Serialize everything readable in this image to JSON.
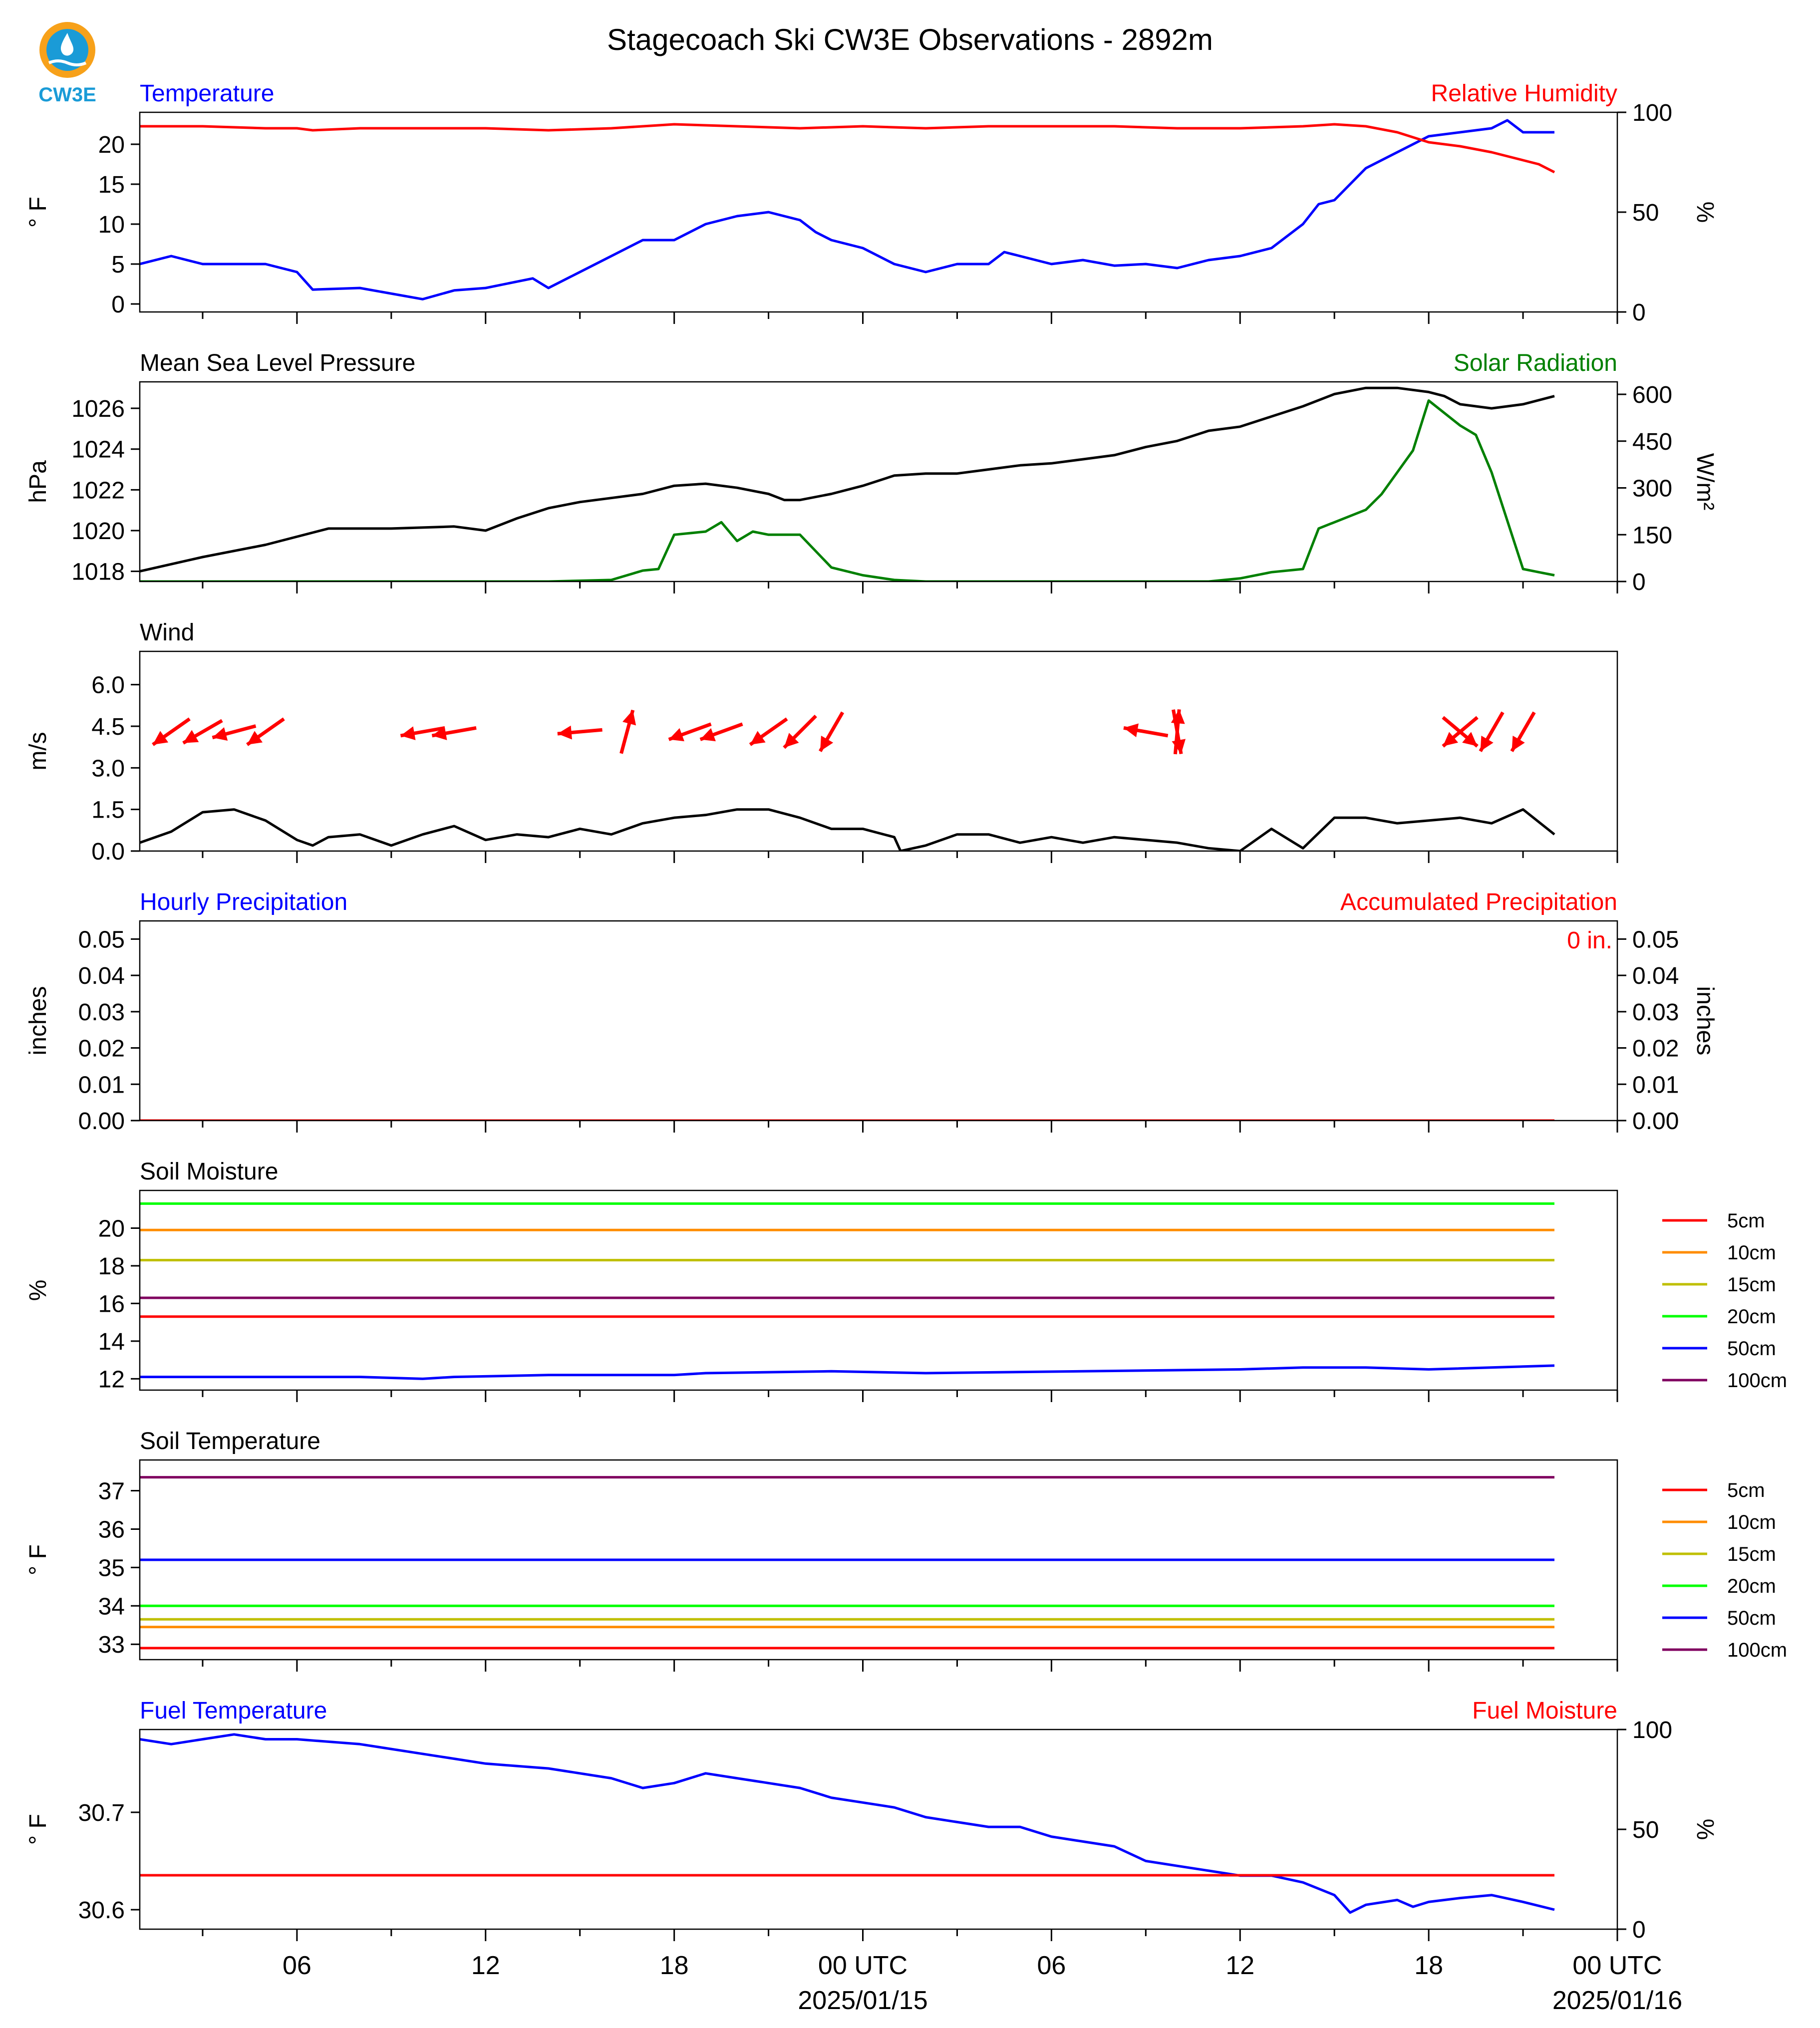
{
  "page_title": "Stagecoach Ski CW3E Observations - 2892m",
  "logo": {
    "text": "CW3E",
    "color": "#1a9bd7",
    "ring_color": "#f7a11a"
  },
  "colors": {
    "blue": "#0000ff",
    "red": "#ff0000",
    "green": "#008000",
    "black": "#000000",
    "orange": "#ff8c00",
    "olive": "#bfbf00",
    "lime": "#00ff00",
    "purple": "#800060"
  },
  "time_axis": {
    "tick_labels": [
      "06",
      "12",
      "18",
      "00 UTC",
      "06",
      "12",
      "18",
      "00 UTC"
    ],
    "tick_hours": [
      6,
      12,
      18,
      24,
      30,
      36,
      42,
      48
    ],
    "date_labels": [
      {
        "hour": 24,
        "text": "2025/01/15"
      },
      {
        "hour": 48,
        "text": "2025/01/16"
      }
    ],
    "range_hours": [
      1,
      48
    ],
    "data_end_hour": 46
  },
  "chart_data": [
    {
      "id": "temperature_rh",
      "type": "line",
      "title_left": "Temperature",
      "title_right": "Relative Humidity",
      "ylabel_left": "° F",
      "ylabel_right": "%",
      "ylim_left": [
        -1,
        24
      ],
      "yticks_left": [
        0,
        5,
        10,
        15,
        20
      ],
      "ylim_right": [
        0,
        100
      ],
      "yticks_right": [
        0,
        50,
        100
      ],
      "series": [
        {
          "axis": "left",
          "color": "#0000ff",
          "x": [
            1,
            2,
            3,
            5,
            6,
            6.5,
            8,
            10,
            11,
            12,
            13.5,
            14,
            15,
            16,
            17,
            18,
            19,
            20,
            21,
            22,
            22.5,
            23,
            24,
            25,
            26,
            27,
            28,
            28.5,
            29,
            30,
            31,
            32,
            33,
            34,
            35,
            36,
            37,
            38,
            38.5,
            39,
            40,
            41,
            42,
            43,
            44,
            44.5,
            45,
            46
          ],
          "y": [
            5,
            6,
            5,
            5,
            4,
            1.8,
            2,
            0.6,
            1.7,
            2,
            3.2,
            2,
            4,
            6,
            8,
            8,
            10,
            11,
            11.5,
            10.5,
            9,
            8,
            7,
            5,
            4,
            5,
            5,
            6.5,
            6,
            5,
            5.5,
            4.8,
            5,
            4.5,
            5.5,
            6,
            7,
            10,
            12.5,
            13,
            17,
            19,
            21,
            21.5,
            22,
            23,
            21.5,
            21.5
          ]
        },
        {
          "axis": "right",
          "color": "#ff0000",
          "x": [
            1,
            3,
            5,
            6,
            6.5,
            8,
            10,
            12,
            14,
            16,
            18,
            20,
            22,
            24,
            26,
            28,
            30,
            32,
            34,
            36,
            38,
            39,
            40,
            41,
            42,
            43,
            44,
            44.5,
            45,
            45.5,
            46
          ],
          "y": [
            93,
            93,
            92,
            92,
            91,
            92,
            92,
            92,
            91,
            92,
            94,
            93,
            92,
            93,
            92,
            93,
            93,
            93,
            92,
            92,
            93,
            94,
            93,
            90,
            85,
            83,
            80,
            78,
            76,
            74,
            70
          ]
        }
      ]
    },
    {
      "id": "pressure_solar",
      "type": "line",
      "title_left": "Mean Sea Level Pressure",
      "title_right": "Solar Radiation",
      "ylabel_left": "hPa",
      "ylabel_right": "W/m²",
      "ylim_left": [
        1017.5,
        1027.3
      ],
      "yticks_left": [
        1018,
        1020,
        1022,
        1024,
        1026
      ],
      "ylim_right": [
        0,
        640
      ],
      "yticks_right": [
        0,
        150,
        300,
        450,
        600
      ],
      "series": [
        {
          "axis": "left",
          "color": "#000000",
          "x": [
            1,
            3,
            5,
            7,
            9,
            11,
            12,
            13,
            14,
            15,
            16,
            17,
            18,
            19,
            20,
            21,
            21.5,
            22,
            23,
            24,
            25,
            26,
            27,
            28,
            29,
            30,
            31,
            32,
            33,
            34,
            35,
            36,
            37,
            38,
            39,
            40,
            41,
            42,
            42.5,
            43,
            44,
            45,
            46
          ],
          "y": [
            1018,
            1018.7,
            1019.3,
            1020.1,
            1020.1,
            1020.2,
            1020,
            1020.6,
            1021.1,
            1021.4,
            1021.6,
            1021.8,
            1022.2,
            1022.3,
            1022.1,
            1021.8,
            1021.5,
            1021.5,
            1021.8,
            1022.2,
            1022.7,
            1022.8,
            1022.8,
            1023,
            1023.2,
            1023.3,
            1023.5,
            1023.7,
            1024.1,
            1024.4,
            1024.9,
            1025.1,
            1025.6,
            1026.1,
            1026.7,
            1027,
            1027,
            1026.8,
            1026.6,
            1026.2,
            1026,
            1026.2,
            1026.6
          ]
        },
        {
          "axis": "right",
          "color": "#008000",
          "x": [
            1,
            14,
            16,
            17,
            17.5,
            18,
            19,
            19.5,
            20,
            20.5,
            21,
            22,
            23,
            24,
            25,
            26,
            30,
            35,
            36,
            37,
            38,
            38.5,
            40,
            40.5,
            41,
            41.5,
            42,
            43,
            43.5,
            44,
            45,
            45.5,
            46
          ],
          "y": [
            0,
            0,
            5,
            35,
            40,
            150,
            160,
            190,
            130,
            160,
            150,
            150,
            45,
            20,
            5,
            0,
            0,
            0,
            10,
            30,
            40,
            170,
            230,
            280,
            350,
            420,
            580,
            500,
            470,
            350,
            40,
            30,
            20
          ]
        }
      ]
    },
    {
      "id": "wind",
      "type": "line",
      "title_left": "Wind",
      "ylabel_left": "m/s",
      "ylim_left": [
        0,
        7.2
      ],
      "yticks_left": [
        0.0,
        1.5,
        3.0,
        4.5,
        6.0
      ],
      "series": [
        {
          "axis": "left",
          "color": "#000000",
          "x": [
            1,
            2,
            3,
            4,
            5,
            6,
            6.5,
            7,
            8,
            9,
            10,
            11,
            12,
            13,
            14,
            15,
            16,
            17,
            18,
            19,
            20,
            21,
            22,
            23,
            24,
            25,
            25.2,
            26,
            27,
            28,
            29,
            30,
            31,
            32,
            33,
            34,
            35,
            36,
            37,
            38,
            39,
            40,
            41,
            42,
            43,
            44,
            45,
            46
          ],
          "y": [
            0.3,
            0.7,
            1.4,
            1.5,
            1.1,
            0.4,
            0.2,
            0.5,
            0.6,
            0.2,
            0.6,
            0.9,
            0.4,
            0.6,
            0.5,
            0.8,
            0.6,
            1.0,
            1.2,
            1.3,
            1.5,
            1.5,
            1.2,
            0.8,
            0.8,
            0.5,
            0,
            0.2,
            0.6,
            0.6,
            0.3,
            0.5,
            0.3,
            0.5,
            0.4,
            0.3,
            0.1,
            0,
            0.8,
            0.1,
            1.2,
            1.2,
            1.0,
            1.1,
            1.2,
            1.0,
            1.5,
            0.6
          ]
        },
        {
          "axis": "left",
          "color": "#ff0000",
          "arrows": true,
          "x": [
            2,
            3,
            4,
            5,
            10,
            11,
            15,
            16.5,
            18.5,
            19.5,
            21,
            22,
            23,
            33,
            34,
            34,
            43,
            43,
            44,
            45
          ],
          "y": [
            4.3,
            4.3,
            4.3,
            4.3,
            4.3,
            4.3,
            4.3,
            4.3,
            4.3,
            4.3,
            4.3,
            4.3,
            4.3,
            4.3,
            4.3,
            4.3,
            4.3,
            4.3,
            4.3,
            4.3
          ],
          "dir_deg": [
            215,
            210,
            195,
            215,
            190,
            190,
            185,
            75,
            200,
            200,
            215,
            225,
            240,
            170,
            85,
            280,
            320,
            220,
            240,
            240
          ]
        }
      ]
    },
    {
      "id": "precipitation",
      "type": "line",
      "title_left": "Hourly Precipitation",
      "title_right": "Accumulated Precipitation",
      "annotation": "0 in.",
      "ylabel_left": "inches",
      "ylabel_right": "inches",
      "ylim_left": [
        0,
        0.055
      ],
      "yticks_left": [
        0.0,
        0.01,
        0.02,
        0.03,
        0.04,
        0.05
      ],
      "ylim_right": [
        0,
        0.055
      ],
      "yticks_right": [
        0.0,
        0.01,
        0.02,
        0.03,
        0.04,
        0.05
      ],
      "series": [
        {
          "axis": "left",
          "color": "#0000ff",
          "x": [
            1,
            46
          ],
          "y": [
            0,
            0
          ]
        },
        {
          "axis": "right",
          "color": "#ff0000",
          "x": [
            1,
            46
          ],
          "y": [
            0,
            0
          ]
        }
      ]
    },
    {
      "id": "soil_moisture",
      "type": "line",
      "title_left": "Soil Moisture",
      "ylabel_left": "%",
      "ylim_left": [
        11.4,
        22.0
      ],
      "yticks_left": [
        12,
        14,
        16,
        18,
        20
      ],
      "legend": [
        "5cm",
        "10cm",
        "15cm",
        "20cm",
        "50cm",
        "100cm"
      ],
      "series": [
        {
          "name": "5cm",
          "color": "#ff0000",
          "x": [
            1,
            46
          ],
          "y": [
            15.3,
            15.3
          ]
        },
        {
          "name": "10cm",
          "color": "#ff8c00",
          "x": [
            1,
            46
          ],
          "y": [
            19.9,
            19.9
          ]
        },
        {
          "name": "15cm",
          "color": "#bfbf00",
          "x": [
            1,
            46
          ],
          "y": [
            18.3,
            18.3
          ]
        },
        {
          "name": "20cm",
          "color": "#00ff00",
          "x": [
            1,
            46
          ],
          "y": [
            21.3,
            21.3
          ]
        },
        {
          "name": "50cm",
          "color": "#0000ff",
          "x": [
            1,
            8,
            10,
            11,
            14,
            18,
            19,
            23,
            26,
            31,
            36,
            38,
            40,
            42,
            46
          ],
          "y": [
            12.1,
            12.1,
            12.0,
            12.1,
            12.2,
            12.2,
            12.3,
            12.4,
            12.3,
            12.4,
            12.5,
            12.6,
            12.6,
            12.5,
            12.7
          ]
        },
        {
          "name": "100cm",
          "color": "#800060",
          "x": [
            1,
            46
          ],
          "y": [
            16.3,
            16.3
          ]
        }
      ]
    },
    {
      "id": "soil_temperature",
      "type": "line",
      "title_left": "Soil Temperature",
      "ylabel_left": "° F",
      "ylim_left": [
        32.6,
        37.8
      ],
      "yticks_left": [
        33,
        34,
        35,
        36,
        37
      ],
      "legend": [
        "5cm",
        "10cm",
        "15cm",
        "20cm",
        "50cm",
        "100cm"
      ],
      "series": [
        {
          "name": "5cm",
          "color": "#ff0000",
          "x": [
            1,
            46
          ],
          "y": [
            32.9,
            32.9
          ]
        },
        {
          "name": "10cm",
          "color": "#ff8c00",
          "x": [
            1,
            46
          ],
          "y": [
            33.45,
            33.45
          ]
        },
        {
          "name": "15cm",
          "color": "#bfbf00",
          "x": [
            1,
            46
          ],
          "y": [
            33.65,
            33.65
          ]
        },
        {
          "name": "20cm",
          "color": "#00ff00",
          "x": [
            1,
            46
          ],
          "y": [
            34.0,
            34.0
          ]
        },
        {
          "name": "50cm",
          "color": "#0000ff",
          "x": [
            1,
            46
          ],
          "y": [
            35.2,
            35.2
          ]
        },
        {
          "name": "100cm",
          "color": "#800060",
          "x": [
            1,
            46
          ],
          "y": [
            37.35,
            37.35
          ]
        }
      ]
    },
    {
      "id": "fuel",
      "type": "line",
      "title_left": "Fuel Temperature",
      "title_right": "Fuel Moisture",
      "ylabel_left": "° F",
      "ylabel_right": "%",
      "ylim_left": [
        30.58,
        30.785
      ],
      "yticks_left": [
        30.6,
        30.7
      ],
      "ylim_right": [
        0,
        100
      ],
      "yticks_right": [
        0,
        50,
        100
      ],
      "series": [
        {
          "axis": "left",
          "color": "#0000ff",
          "x": [
            1,
            2,
            3,
            4,
            5,
            6,
            8,
            10,
            12,
            14,
            16,
            17,
            18,
            19,
            20,
            21,
            22,
            23,
            24,
            25,
            26,
            27,
            28,
            29,
            30,
            31,
            32,
            33,
            34,
            35,
            36,
            37,
            38,
            39,
            39.5,
            40,
            41,
            41.5,
            42,
            43,
            44,
            45,
            46
          ],
          "y": [
            30.775,
            30.77,
            30.775,
            30.78,
            30.775,
            30.775,
            30.77,
            30.76,
            30.75,
            30.745,
            30.735,
            30.725,
            30.73,
            30.74,
            30.735,
            30.73,
            30.725,
            30.715,
            30.71,
            30.705,
            30.695,
            30.69,
            30.685,
            30.685,
            30.675,
            30.67,
            30.665,
            30.65,
            30.645,
            30.64,
            30.635,
            30.635,
            30.628,
            30.615,
            30.597,
            30.605,
            30.61,
            30.603,
            30.608,
            30.612,
            30.615,
            30.608,
            30.6
          ]
        },
        {
          "axis": "right",
          "color": "#ff0000",
          "x": [
            1,
            46
          ],
          "y": [
            27,
            27
          ]
        }
      ]
    }
  ]
}
